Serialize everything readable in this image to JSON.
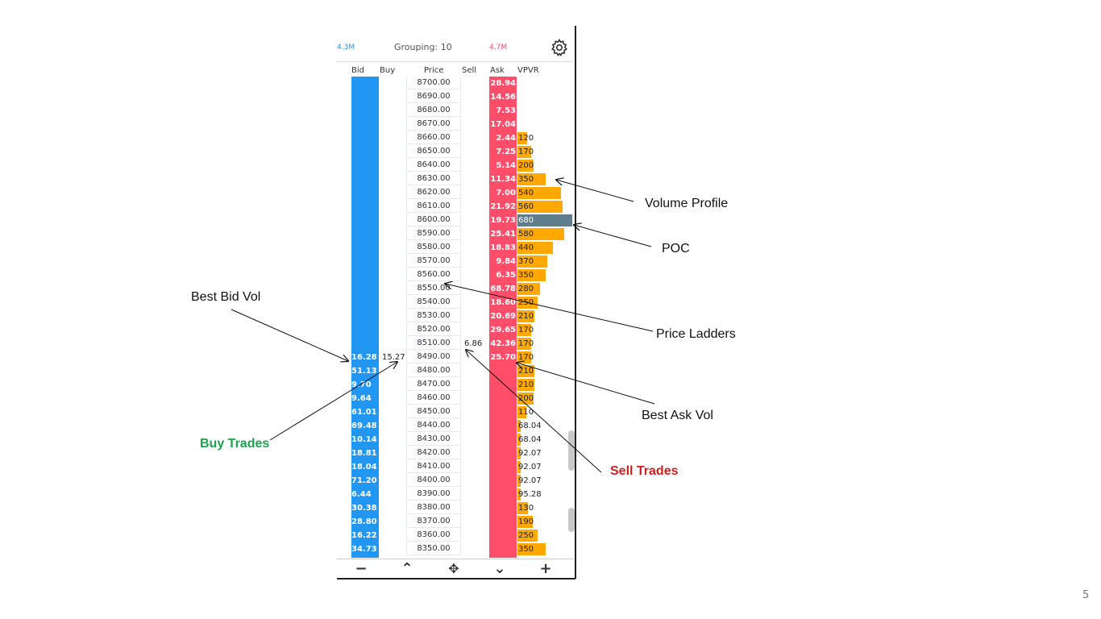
{
  "header": {
    "bid_total": "4.3M",
    "grouping": "Grouping: 10",
    "ask_total": "4.7M",
    "settings_icon": "gear-icon"
  },
  "columns": {
    "bid": "Bid",
    "buy": "Buy",
    "price": "Price",
    "sell": "Sell",
    "ask": "Ask",
    "vpvr": "VPVR"
  },
  "ladder": [
    {
      "price": "8700.00",
      "bid": "",
      "ask": "28.94",
      "vp": "",
      "vp_value": 0
    },
    {
      "price": "8690.00",
      "bid": "",
      "ask": "14.56",
      "vp": "",
      "vp_value": 0
    },
    {
      "price": "8680.00",
      "bid": "",
      "ask": "7.53",
      "vp": "",
      "vp_value": 0
    },
    {
      "price": "8670.00",
      "bid": "",
      "ask": "17.04",
      "vp": "",
      "vp_value": 0
    },
    {
      "price": "8660.00",
      "bid": "",
      "ask": "2.44",
      "vp": "120",
      "vp_value": 120
    },
    {
      "price": "8650.00",
      "bid": "",
      "ask": "7.25",
      "vp": "170",
      "vp_value": 170
    },
    {
      "price": "8640.00",
      "bid": "",
      "ask": "5.14",
      "vp": "200",
      "vp_value": 200
    },
    {
      "price": "8630.00",
      "bid": "",
      "ask": "11.34",
      "vp": "350",
      "vp_value": 350
    },
    {
      "price": "8620.00",
      "bid": "",
      "ask": "7.00",
      "vp": "540",
      "vp_value": 540
    },
    {
      "price": "8610.00",
      "bid": "",
      "ask": "21.92",
      "vp": "560",
      "vp_value": 560
    },
    {
      "price": "8600.00",
      "bid": "",
      "ask": "19.73",
      "vp": "680",
      "vp_value": 680,
      "poc": true
    },
    {
      "price": "8590.00",
      "bid": "",
      "ask": "25.41",
      "vp": "580",
      "vp_value": 580
    },
    {
      "price": "8580.00",
      "bid": "",
      "ask": "18.83",
      "vp": "440",
      "vp_value": 440
    },
    {
      "price": "8570.00",
      "bid": "",
      "ask": "9.84",
      "vp": "370",
      "vp_value": 370
    },
    {
      "price": "8560.00",
      "bid": "",
      "ask": "6.35",
      "vp": "350",
      "vp_value": 350
    },
    {
      "price": "8550.00",
      "bid": "",
      "ask": "68.78",
      "vp": "280",
      "vp_value": 280
    },
    {
      "price": "8540.00",
      "bid": "",
      "ask": "18.60",
      "vp": "250",
      "vp_value": 250
    },
    {
      "price": "8530.00",
      "bid": "",
      "ask": "20.69",
      "vp": "210",
      "vp_value": 210
    },
    {
      "price": "8520.00",
      "bid": "",
      "ask": "29.65",
      "vp": "170",
      "vp_value": 170
    },
    {
      "price": "8510.00",
      "bid": "",
      "ask": "42.36",
      "vp": "170",
      "vp_value": 170,
      "sell": "6.86"
    },
    {
      "price": "8490.00",
      "bid": "16.28",
      "ask": "25.70",
      "vp": "170",
      "vp_value": 170,
      "buy": "15.27"
    },
    {
      "price": "8480.00",
      "bid": "51.13",
      "ask": "",
      "vp": "210",
      "vp_value": 210
    },
    {
      "price": "8470.00",
      "bid": "9.70",
      "ask": "",
      "vp": "210",
      "vp_value": 210
    },
    {
      "price": "8460.00",
      "bid": "9.64",
      "ask": "",
      "vp": "200",
      "vp_value": 200
    },
    {
      "price": "8450.00",
      "bid": "61.01",
      "ask": "",
      "vp": "110",
      "vp_value": 110
    },
    {
      "price": "8440.00",
      "bid": "69.48",
      "ask": "",
      "vp": "68.04",
      "vp_value": 68.04
    },
    {
      "price": "8430.00",
      "bid": "10.14",
      "ask": "",
      "vp": "68.04",
      "vp_value": 68.04
    },
    {
      "price": "8420.00",
      "bid": "18.81",
      "ask": "",
      "vp": "92.07",
      "vp_value": 92.07
    },
    {
      "price": "8410.00",
      "bid": "18.04",
      "ask": "",
      "vp": "92.07",
      "vp_value": 92.07
    },
    {
      "price": "8400.00",
      "bid": "71.20",
      "ask": "",
      "vp": "92.07",
      "vp_value": 92.07
    },
    {
      "price": "8390.00",
      "bid": "6.44",
      "ask": "",
      "vp": "95.28",
      "vp_value": 95.28
    },
    {
      "price": "8380.00",
      "bid": "30.38",
      "ask": "",
      "vp": "130",
      "vp_value": 130
    },
    {
      "price": "8370.00",
      "bid": "28.80",
      "ask": "",
      "vp": "190",
      "vp_value": 190
    },
    {
      "price": "8360.00",
      "bid": "16.22",
      "ask": "",
      "vp": "250",
      "vp_value": 250
    },
    {
      "price": "8350.00",
      "bid": "34.73",
      "ask": "",
      "vp": "350",
      "vp_value": 350
    }
  ],
  "toolbar": {
    "zoom_out": "−",
    "scroll_up": "⌃",
    "center": "✥",
    "scroll_down": "⌄",
    "zoom_in": "+"
  },
  "annotations": {
    "volume_profile": "Volume Profile",
    "poc": "POC",
    "best_bid_vol": "Best Bid Vol",
    "price_ladders": "Price Ladders",
    "best_ask_vol": "Best Ask Vol",
    "buy_trades": "Buy Trades",
    "sell_trades": "Sell Trades"
  },
  "page_number": "5",
  "colors": {
    "bid": "#2196f3",
    "ask": "#ff4d6a",
    "volume_profile": "#ffa800",
    "poc": "#607d8b",
    "buy_trades_label": "#1aa34a",
    "sell_trades_label": "#cc1f1f"
  }
}
